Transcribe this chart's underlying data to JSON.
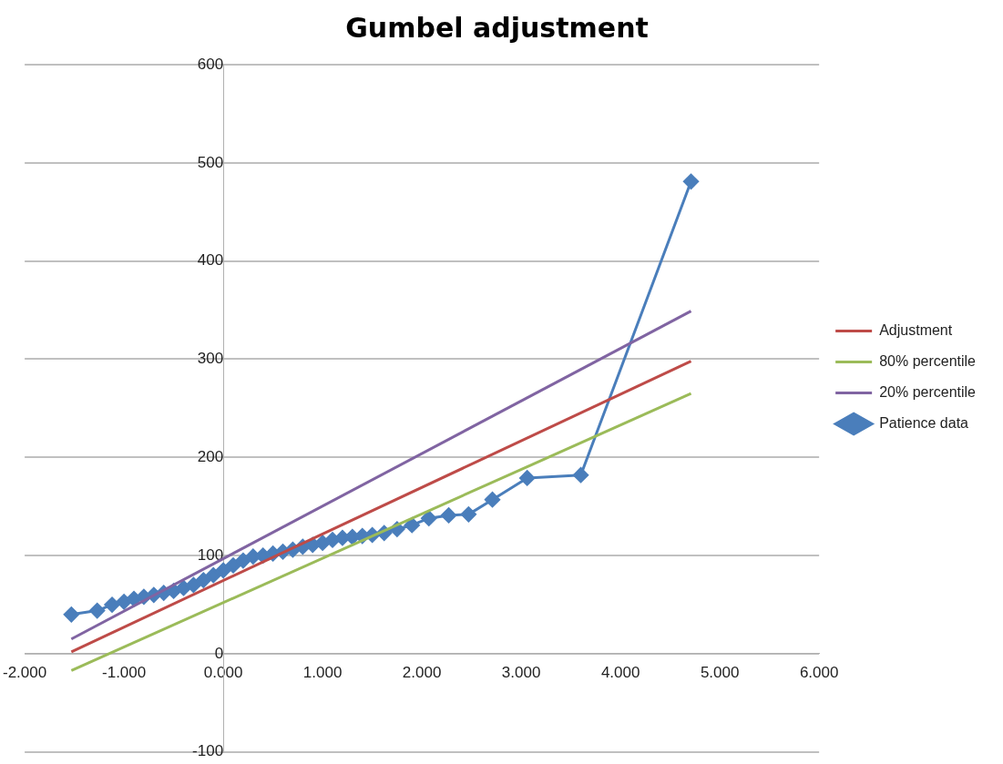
{
  "chart_data": {
    "type": "line",
    "title": "Gumbel adjustment",
    "xlim": [
      -2,
      6
    ],
    "xticks": [
      {
        "value": -2,
        "label": "-2.000"
      },
      {
        "value": -1,
        "label": "-1.000"
      },
      {
        "value": 0,
        "label": "0.000"
      },
      {
        "value": 1,
        "label": "1.000"
      },
      {
        "value": 2,
        "label": "2.000"
      },
      {
        "value": 3,
        "label": "3.000"
      },
      {
        "value": 4,
        "label": "4.000"
      },
      {
        "value": 5,
        "label": "5.000"
      },
      {
        "value": 6,
        "label": "6.000"
      }
    ],
    "ylim": [
      -100,
      600
    ],
    "yticks": [
      -100,
      0,
      100,
      200,
      300,
      400,
      500,
      600
    ],
    "grid": "y",
    "legend": "right",
    "series": [
      {
        "name": "Adjustment",
        "color": "#be4b48",
        "marker": "none",
        "x": [
          -1.53,
          4.71
        ],
        "values": [
          2,
          298
        ]
      },
      {
        "name": "80% percentile",
        "color": "#9bbb59",
        "marker": "none",
        "x": [
          -1.53,
          4.71
        ],
        "values": [
          -17,
          265
        ]
      },
      {
        "name": "20% percentile",
        "color": "#8064a2",
        "marker": "none",
        "x": [
          -1.53,
          4.71
        ],
        "values": [
          15,
          349
        ]
      },
      {
        "name": "Patience data",
        "color": "#4a7ebb",
        "marker": "diamond",
        "x": [
          -1.53,
          -1.27,
          -1.12,
          -1.0,
          -0.9,
          -0.8,
          -0.7,
          -0.6,
          -0.5,
          -0.4,
          -0.3,
          -0.2,
          -0.1,
          0.0,
          0.1,
          0.2,
          0.3,
          0.4,
          0.5,
          0.6,
          0.7,
          0.8,
          0.9,
          1.0,
          1.1,
          1.2,
          1.3,
          1.4,
          1.5,
          1.62,
          1.75,
          1.9,
          2.07,
          2.27,
          2.47,
          2.71,
          3.06,
          3.6,
          4.71
        ],
        "values": [
          40,
          44,
          50,
          53,
          56,
          58,
          60,
          62,
          64,
          67,
          70,
          75,
          80,
          85,
          90,
          95,
          99,
          100,
          102,
          104,
          106,
          109,
          111,
          113,
          116,
          118,
          119,
          120,
          121,
          123,
          127,
          131,
          138,
          141,
          142,
          157,
          179,
          182,
          481
        ]
      }
    ]
  }
}
